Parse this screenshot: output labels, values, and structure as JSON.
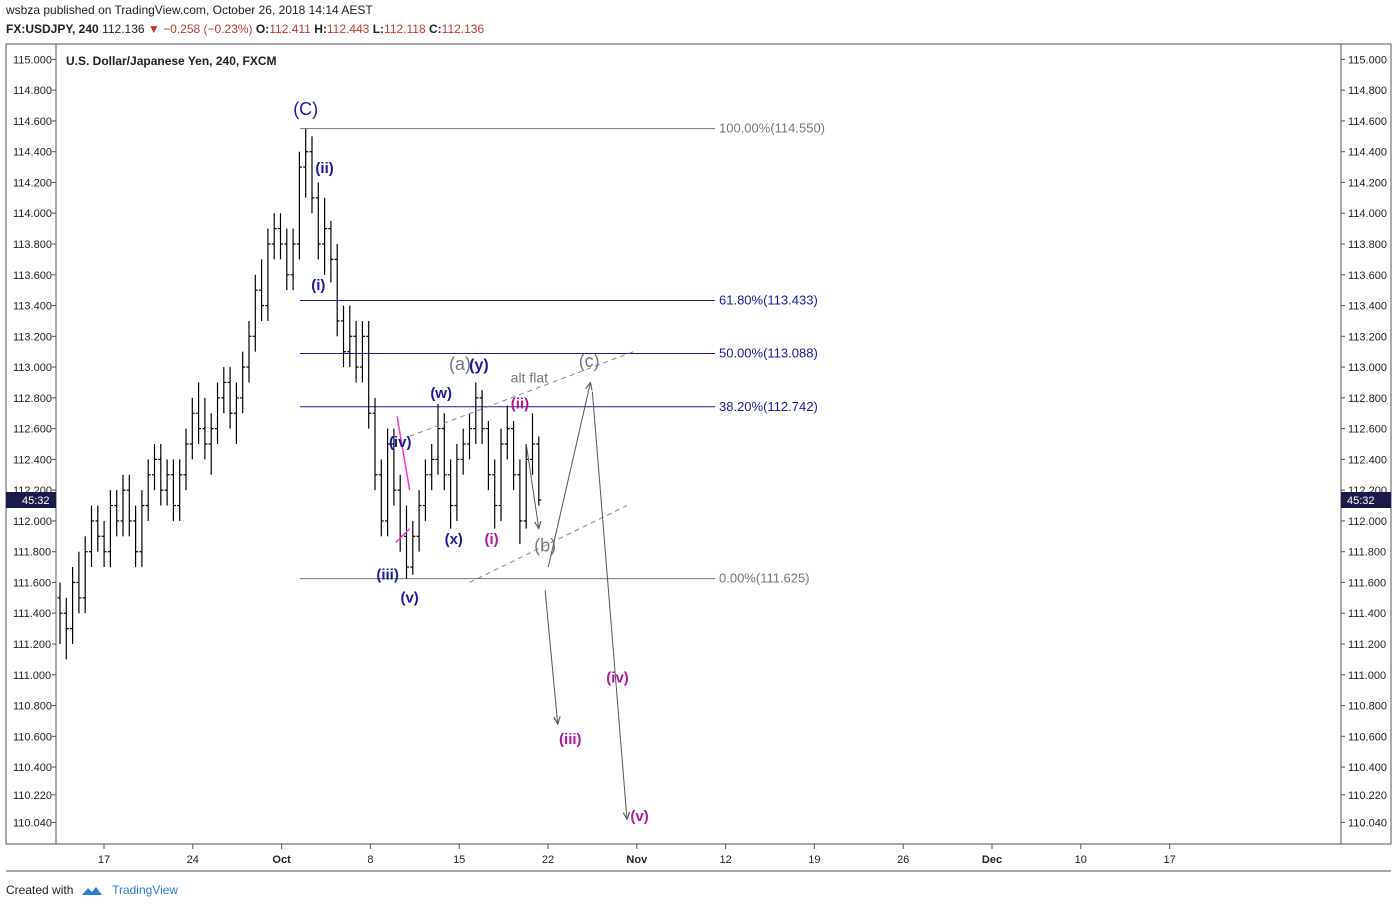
{
  "header": {
    "author": "wsbza",
    "published_text": "published on",
    "site": "TradingView.com",
    "date": ", October 26, 2018 14:14 AEST"
  },
  "quote": {
    "symbol": "FX:USDJPY, 240",
    "last": "112.136",
    "change": "−0.258 (−0.23%)",
    "open_label": "O:",
    "open": "112.411",
    "high_label": "H:",
    "high": "112.443",
    "low_label": "L:",
    "low": "112.118",
    "close_label": "C:",
    "close": "112.136"
  },
  "footer": {
    "created_with": "Created with",
    "brand": "TradingView"
  },
  "colors": {
    "bar": "#000000",
    "navy": "#1a1a9c",
    "gray": "#777777",
    "magenta": "#b0179e",
    "pink": "#ff33cc",
    "countdown_bg": "#1c1c4a"
  },
  "chart_data": {
    "type": "ohlc",
    "title": "U.S. Dollar/Japanese Yen, 240, FXCM",
    "ylim": [
      109.9,
      115.1
    ],
    "y_ticks": [
      "115.000",
      "114.800",
      "114.600",
      "114.400",
      "114.200",
      "114.000",
      "113.800",
      "113.600",
      "113.400",
      "113.200",
      "113.000",
      "112.800",
      "112.600",
      "112.400",
      "112.200",
      "112.000",
      "111.800",
      "111.600",
      "111.400",
      "111.200",
      "111.000",
      "110.800",
      "110.600",
      "110.400",
      "110.220",
      "110.040"
    ],
    "x_ticks": [
      "17",
      "24",
      "Oct",
      "8",
      "15",
      "22",
      "Nov",
      "12",
      "19",
      "26",
      "Dec",
      "10",
      "17"
    ],
    "countdown": "45:32",
    "last_price": 112.136,
    "bars": [
      [
        111.5,
        111.6,
        111.2,
        111.4
      ],
      [
        111.4,
        111.5,
        111.1,
        111.3
      ],
      [
        111.3,
        111.7,
        111.2,
        111.6
      ],
      [
        111.6,
        111.8,
        111.4,
        111.5
      ],
      [
        111.5,
        111.9,
        111.4,
        111.8
      ],
      [
        111.8,
        112.1,
        111.7,
        112.0
      ],
      [
        112.0,
        112.1,
        111.8,
        111.9
      ],
      [
        111.9,
        112.0,
        111.7,
        111.8
      ],
      [
        111.8,
        112.2,
        111.7,
        112.1
      ],
      [
        112.1,
        112.2,
        111.9,
        112.0
      ],
      [
        112.0,
        112.3,
        111.9,
        112.2
      ],
      [
        112.2,
        112.3,
        111.9,
        112.0
      ],
      [
        112.0,
        112.1,
        111.7,
        111.8
      ],
      [
        111.8,
        112.2,
        111.7,
        112.1
      ],
      [
        112.1,
        112.4,
        112.0,
        112.3
      ],
      [
        112.3,
        112.5,
        112.2,
        112.4
      ],
      [
        112.4,
        112.5,
        112.1,
        112.2
      ],
      [
        112.2,
        112.4,
        112.1,
        112.3
      ],
      [
        112.3,
        112.4,
        112.0,
        112.1
      ],
      [
        112.1,
        112.4,
        112.0,
        112.3
      ],
      [
        112.3,
        112.6,
        112.2,
        112.5
      ],
      [
        112.5,
        112.8,
        112.4,
        112.7
      ],
      [
        112.7,
        112.9,
        112.5,
        112.6
      ],
      [
        112.6,
        112.8,
        112.4,
        112.5
      ],
      [
        112.5,
        112.7,
        112.3,
        112.6
      ],
      [
        112.6,
        112.9,
        112.5,
        112.8
      ],
      [
        112.8,
        113.0,
        112.7,
        112.9
      ],
      [
        112.9,
        113.0,
        112.6,
        112.7
      ],
      [
        112.7,
        112.9,
        112.5,
        112.8
      ],
      [
        112.8,
        113.1,
        112.7,
        113.0
      ],
      [
        113.0,
        113.3,
        112.9,
        113.2
      ],
      [
        113.2,
        113.6,
        113.1,
        113.5
      ],
      [
        113.5,
        113.7,
        113.3,
        113.4
      ],
      [
        113.4,
        113.9,
        113.3,
        113.8
      ],
      [
        113.8,
        114.0,
        113.7,
        113.9
      ],
      [
        113.9,
        114.0,
        113.7,
        113.8
      ],
      [
        113.8,
        113.9,
        113.5,
        113.6
      ],
      [
        113.6,
        113.9,
        113.5,
        113.8
      ],
      [
        113.8,
        114.4,
        113.7,
        114.3
      ],
      [
        114.3,
        114.55,
        114.1,
        114.4
      ],
      [
        114.4,
        114.5,
        114.0,
        114.1
      ],
      [
        114.1,
        114.2,
        113.7,
        113.8
      ],
      [
        113.8,
        114.1,
        113.6,
        113.9
      ],
      [
        113.9,
        113.95,
        113.55,
        113.7
      ],
      [
        113.7,
        113.8,
        113.2,
        113.3
      ],
      [
        113.3,
        113.4,
        113.0,
        113.1
      ],
      [
        113.1,
        113.4,
        113.0,
        113.2
      ],
      [
        113.2,
        113.3,
        112.9,
        113.0
      ],
      [
        113.0,
        113.3,
        112.9,
        113.2
      ],
      [
        113.2,
        113.3,
        112.6,
        112.7
      ],
      [
        112.7,
        112.8,
        112.2,
        112.3
      ],
      [
        112.3,
        112.4,
        111.9,
        112.0
      ],
      [
        112.0,
        112.6,
        111.9,
        112.5
      ],
      [
        112.5,
        112.6,
        112.1,
        112.2
      ],
      [
        112.2,
        112.3,
        111.8,
        111.9
      ],
      [
        111.9,
        112.1,
        111.625,
        111.7
      ],
      [
        111.7,
        112.0,
        111.65,
        111.9
      ],
      [
        111.9,
        112.2,
        111.8,
        112.1
      ],
      [
        112.1,
        112.4,
        112.0,
        112.3
      ],
      [
        112.3,
        112.5,
        112.2,
        112.4
      ],
      [
        112.4,
        112.76,
        112.3,
        112.6
      ],
      [
        112.6,
        112.7,
        112.2,
        112.3
      ],
      [
        112.3,
        112.4,
        111.95,
        112.1
      ],
      [
        112.1,
        112.5,
        112.0,
        112.4
      ],
      [
        112.4,
        112.6,
        112.3,
        112.5
      ],
      [
        112.5,
        112.7,
        112.4,
        112.6
      ],
      [
        112.6,
        112.9,
        112.5,
        112.8
      ],
      [
        112.8,
        112.85,
        112.5,
        112.6
      ],
      [
        112.6,
        112.65,
        112.2,
        112.3
      ],
      [
        112.3,
        112.4,
        111.95,
        112.1
      ],
      [
        112.1,
        112.6,
        112.0,
        112.5
      ],
      [
        112.5,
        112.75,
        112.4,
        112.6
      ],
      [
        112.6,
        112.65,
        112.2,
        112.3
      ],
      [
        112.3,
        112.4,
        111.85,
        112.0
      ],
      [
        112.0,
        112.5,
        111.95,
        112.4
      ],
      [
        112.4,
        112.7,
        112.3,
        112.5
      ],
      [
        112.5,
        112.55,
        112.1,
        112.136
      ]
    ],
    "fib_levels": [
      {
        "label": "100.00%(114.550)",
        "price": 114.55,
        "color": "gray"
      },
      {
        "label": "61.80%(113.433)",
        "price": 113.433,
        "color": "navy"
      },
      {
        "label": "50.00%(113.088)",
        "price": 113.088,
        "color": "navy"
      },
      {
        "label": "38.20%(112.742)",
        "price": 112.742,
        "color": "navy"
      },
      {
        "label": "0.00%(111.625)",
        "price": 111.625,
        "color": "gray"
      }
    ],
    "annotations": [
      {
        "text": "(C)",
        "color": "navy",
        "date_index": 39,
        "price": 114.64,
        "size": 18
      },
      {
        "text": "(ii)",
        "color": "navy",
        "date_index": 42,
        "price": 114.26,
        "bold": true
      },
      {
        "text": "(i)",
        "color": "navy",
        "date_index": 41,
        "price": 113.5,
        "bold": true
      },
      {
        "text": "(iv)",
        "color": "navy",
        "date_index": 54,
        "price": 112.48,
        "bold": true
      },
      {
        "text": "(iii)",
        "color": "navy",
        "date_index": 52,
        "price": 111.62,
        "bold": true
      },
      {
        "text": "(v)",
        "color": "navy",
        "date_index": 55.5,
        "price": 111.47,
        "bold": true
      },
      {
        "text": "(w)",
        "color": "navy",
        "date_index": 60.5,
        "price": 112.8,
        "bold": true
      },
      {
        "text": "(x)",
        "color": "navy",
        "date_index": 62.5,
        "price": 111.85,
        "bold": true
      },
      {
        "text": "(y)",
        "color": "navy",
        "date_index": 66.5,
        "price": 112.98,
        "bold": true,
        "size": 16
      },
      {
        "text": "(a)",
        "color": "gray",
        "date_index": 63.5,
        "price": 112.98,
        "size": 18
      },
      {
        "text": "alt flat",
        "color": "gray",
        "date_index": 74.5,
        "price": 112.9,
        "size": 14
      },
      {
        "text": "(ii)",
        "color": "magenta",
        "date_index": 73,
        "price": 112.73,
        "bold": true
      },
      {
        "text": "(i)",
        "color": "magenta",
        "date_index": 68.5,
        "price": 111.85,
        "bold": true
      },
      {
        "text": "(b)",
        "color": "gray",
        "date_index": 77,
        "price": 111.8,
        "size": 18
      },
      {
        "text": "(c)",
        "color": "gray",
        "date_index": 84,
        "price": 113.0,
        "size": 18
      },
      {
        "text": "(iv)",
        "color": "magenta",
        "date_index": 88.5,
        "price": 110.95,
        "bold": true
      },
      {
        "text": "(iii)",
        "color": "magenta",
        "date_index": 81,
        "price": 110.55,
        "bold": true
      },
      {
        "text": "(v)",
        "color": "magenta",
        "date_index": 92,
        "price": 110.05,
        "bold": true
      }
    ]
  }
}
